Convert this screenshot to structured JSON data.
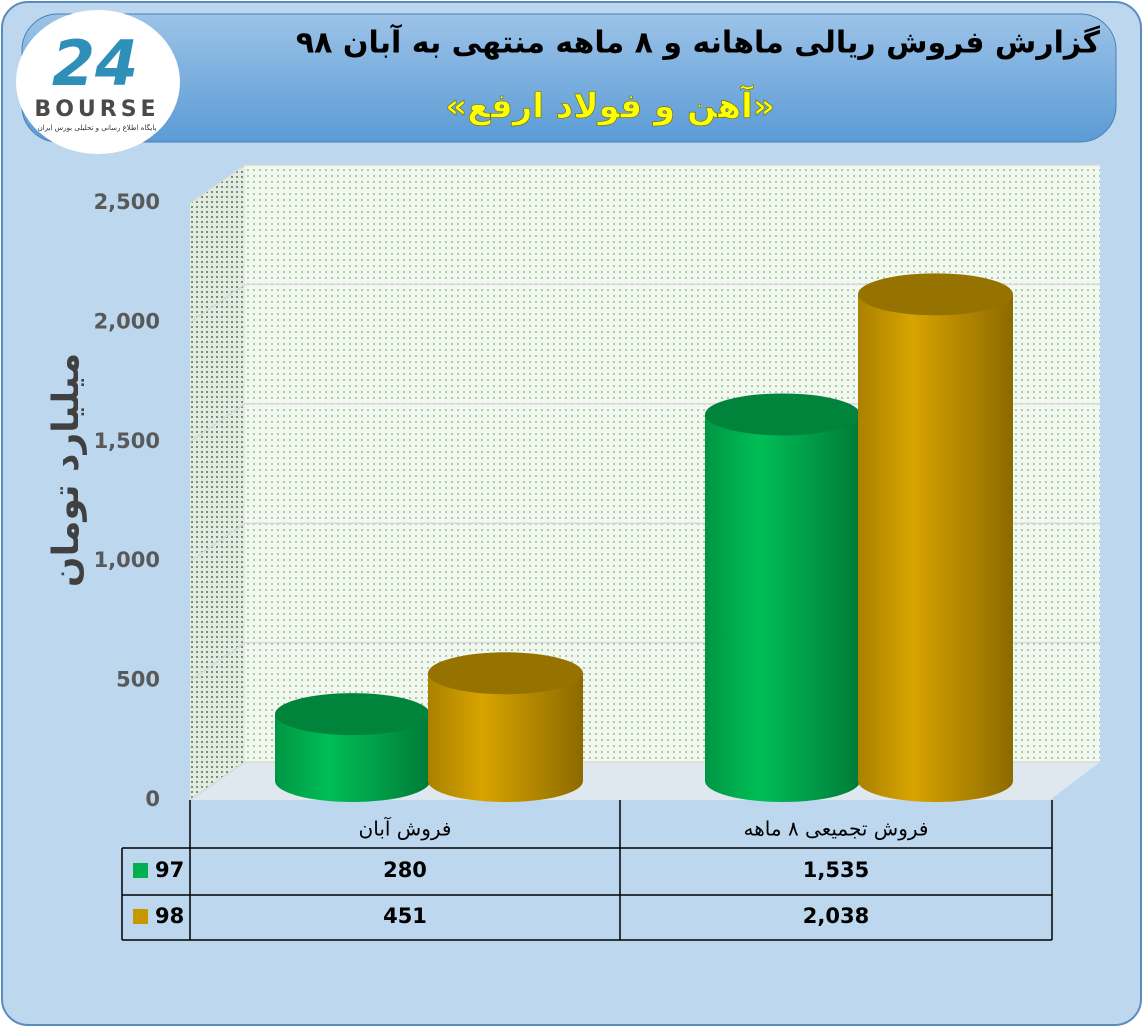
{
  "chart_data": {
    "type": "bar",
    "title": "گزارش فروش ریالی ماهانه و ۸ ماهه منتهی به آبان ۹۸",
    "subtitle": "«آهن و فولاد ارفع»",
    "y_label": "میلیارد تومان",
    "logo": {
      "mark": "24",
      "name": "BOURSE",
      "tagline": "پایگاه اطلاع رسانی و تحلیلی بورس ایران"
    },
    "categories": [
      "فروش آبان",
      "فروش تجمیعی ۸ ماهه"
    ],
    "series": [
      {
        "name": "97",
        "color": "#00b050",
        "values": [
          280,
          1535
        ],
        "value_labels": [
          "280",
          "1,535"
        ]
      },
      {
        "name": "98",
        "color": "#c89800",
        "values": [
          451,
          2038
        ],
        "value_labels": [
          "451",
          "2,038"
        ]
      }
    ],
    "ylim": [
      0,
      2500
    ],
    "yticks": [
      0,
      500,
      {
        "value": 1000,
        "label": "1,000"
      },
      {
        "value": 1500,
        "label": "1,500"
      },
      {
        "value": 2000,
        "label": "2,000"
      },
      {
        "value": 2500,
        "label": "2,500"
      }
    ],
    "grid": true
  }
}
